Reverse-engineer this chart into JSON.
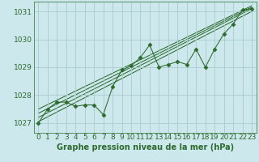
{
  "title": "Graphe pression niveau de la mer (hPa)",
  "bg_color": "#cce8ec",
  "grid_color": "#aacccc",
  "line_color": "#2d6a2d",
  "xlim": [
    -0.5,
    23.5
  ],
  "ylim": [
    1026.65,
    1031.35
  ],
  "yticks": [
    1027,
    1028,
    1029,
    1030,
    1031
  ],
  "xticks": [
    0,
    1,
    2,
    3,
    4,
    5,
    6,
    7,
    8,
    9,
    10,
    11,
    12,
    13,
    14,
    15,
    16,
    17,
    18,
    19,
    20,
    21,
    22,
    23
  ],
  "data_x": [
    0,
    1,
    2,
    3,
    4,
    5,
    6,
    7,
    8,
    9,
    10,
    11,
    12,
    13,
    14,
    15,
    16,
    17,
    18,
    19,
    20,
    21,
    22,
    23
  ],
  "data_y": [
    1027.0,
    1027.5,
    1027.75,
    1027.75,
    1027.6,
    1027.65,
    1027.65,
    1027.3,
    1028.3,
    1028.9,
    1029.05,
    1029.35,
    1029.8,
    1029.0,
    1029.1,
    1029.2,
    1029.1,
    1029.65,
    1029.0,
    1029.65,
    1030.2,
    1030.55,
    1031.05,
    1031.1
  ],
  "trend_lines": [
    {
      "x": [
        0,
        23
      ],
      "y": [
        1027.05,
        1031.0
      ]
    },
    {
      "x": [
        0,
        23
      ],
      "y": [
        1027.2,
        1031.1
      ]
    },
    {
      "x": [
        0,
        23
      ],
      "y": [
        1027.35,
        1031.15
      ]
    },
    {
      "x": [
        0,
        23
      ],
      "y": [
        1027.5,
        1031.2
      ]
    }
  ],
  "font_color": "#2d6a2d",
  "font_size": 6.5,
  "title_fontsize": 7.0,
  "marker_size": 2.5,
  "lw": 0.75
}
